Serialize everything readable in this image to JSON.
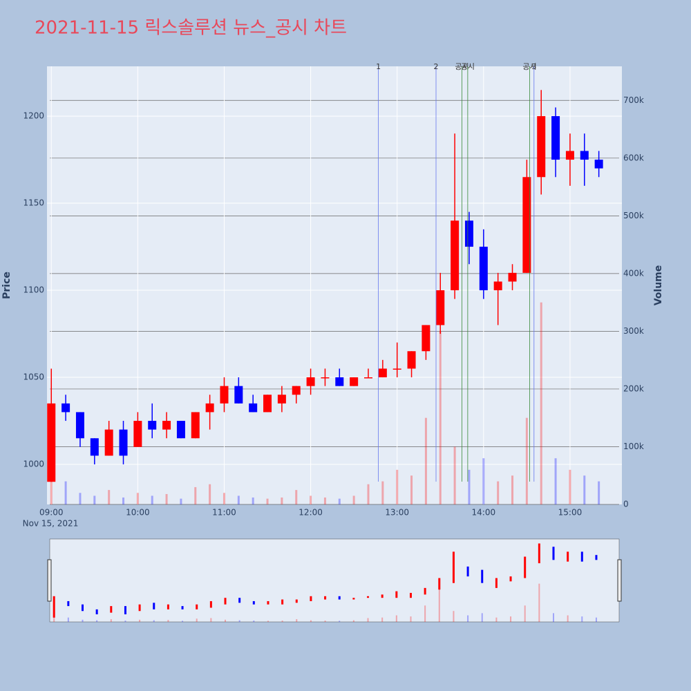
{
  "chart_data": {
    "type": "candlestick",
    "title": "2021-11-15 릭스솔루션 뉴스_공시 차트",
    "y_label": "Price",
    "y2_label": "Volume",
    "x_date_label": "Nov 15, 2021",
    "increasing_color": "#ff0000",
    "decreasing_color": "#0000ff",
    "x": [
      "09:00",
      "09:10",
      "09:20",
      "09:30",
      "09:40",
      "09:50",
      "10:00",
      "10:10",
      "10:20",
      "10:30",
      "10:40",
      "10:50",
      "11:00",
      "11:10",
      "11:20",
      "11:30",
      "11:40",
      "11:50",
      "12:00",
      "12:10",
      "12:20",
      "12:30",
      "12:40",
      "12:50",
      "13:00",
      "13:10",
      "13:20",
      "13:30",
      "13:40",
      "13:50",
      "14:00",
      "14:10",
      "14:20",
      "14:30",
      "14:40",
      "14:50",
      "15:00",
      "15:10",
      "15:20"
    ],
    "open": [
      990,
      1035,
      1030,
      1015,
      1005,
      1020,
      1010,
      1025,
      1020,
      1025,
      1015,
      1030,
      1035,
      1045,
      1035,
      1030,
      1035,
      1040,
      1045,
      1050,
      1050,
      1045,
      1050,
      1050,
      1055,
      1055,
      1065,
      1080,
      1100,
      1140,
      1125,
      1100,
      1105,
      1110,
      1165,
      1200,
      1175,
      1180,
      1175
    ],
    "high": [
      1055,
      1040,
      1030,
      1015,
      1025,
      1025,
      1030,
      1035,
      1030,
      1025,
      1030,
      1040,
      1050,
      1050,
      1040,
      1040,
      1045,
      1045,
      1055,
      1055,
      1055,
      1050,
      1055,
      1060,
      1070,
      1065,
      1080,
      1110,
      1190,
      1145,
      1135,
      1110,
      1115,
      1175,
      1215,
      1205,
      1190,
      1190,
      1180
    ],
    "low": [
      990,
      1025,
      1010,
      1000,
      1005,
      1000,
      1010,
      1015,
      1015,
      1015,
      1015,
      1020,
      1030,
      1035,
      1030,
      1030,
      1030,
      1035,
      1040,
      1045,
      1045,
      1045,
      1050,
      1050,
      1050,
      1050,
      1060,
      1075,
      1095,
      1115,
      1095,
      1080,
      1100,
      1110,
      1155,
      1165,
      1160,
      1160,
      1165
    ],
    "close": [
      1035,
      1030,
      1015,
      1005,
      1020,
      1005,
      1025,
      1020,
      1025,
      1015,
      1030,
      1035,
      1045,
      1035,
      1030,
      1040,
      1040,
      1045,
      1050,
      1050,
      1045,
      1050,
      1050,
      1055,
      1055,
      1065,
      1080,
      1100,
      1140,
      1125,
      1100,
      1105,
      1110,
      1165,
      1200,
      1175,
      1180,
      1175,
      1170
    ],
    "volume": [
      90000,
      40000,
      20000,
      15000,
      25000,
      12000,
      20000,
      15000,
      18000,
      10000,
      30000,
      35000,
      20000,
      15000,
      12000,
      10000,
      12000,
      25000,
      15000,
      12000,
      10000,
      15000,
      35000,
      40000,
      60000,
      50000,
      150000,
      300000,
      100000,
      60000,
      80000,
      40000,
      50000,
      150000,
      350000,
      80000,
      60000,
      50000,
      40000
    ],
    "xlim": [
      "08:57",
      "15:36"
    ],
    "xticks": [
      "09:00",
      "10:00",
      "11:00",
      "12:00",
      "13:00",
      "14:00",
      "15:00"
    ],
    "ylim": [
      977,
      1228.6
    ],
    "yticks": [
      1000,
      1050,
      1100,
      1150,
      1200
    ],
    "y2lim": [
      0,
      759000
    ],
    "y2ticks": [
      0,
      {
        "value": 100000,
        "label": "100k"
      },
      {
        "value": 200000,
        "label": "200k"
      },
      {
        "value": 300000,
        "label": "300k"
      },
      {
        "value": 400000,
        "label": "400k"
      },
      {
        "value": 500000,
        "label": "500k"
      },
      {
        "value": 600000,
        "label": "600k"
      },
      {
        "value": 700000,
        "label": "700k"
      }
    ],
    "annotations": [
      {
        "x": "12:47",
        "label": "1",
        "color": "#6677ee"
      },
      {
        "x": "13:27",
        "label": "2",
        "color": "#6677ee"
      },
      {
        "x": "13:45",
        "label": "공시",
        "color": "#3a8a3a"
      },
      {
        "x": "13:49",
        "label": "공시",
        "color": "#3a8a3a"
      },
      {
        "x": "14:32",
        "label": "공시",
        "color": "#3a8a3a"
      },
      {
        "x": "14:35",
        "label": "3",
        "color": "#6677ee"
      }
    ]
  }
}
